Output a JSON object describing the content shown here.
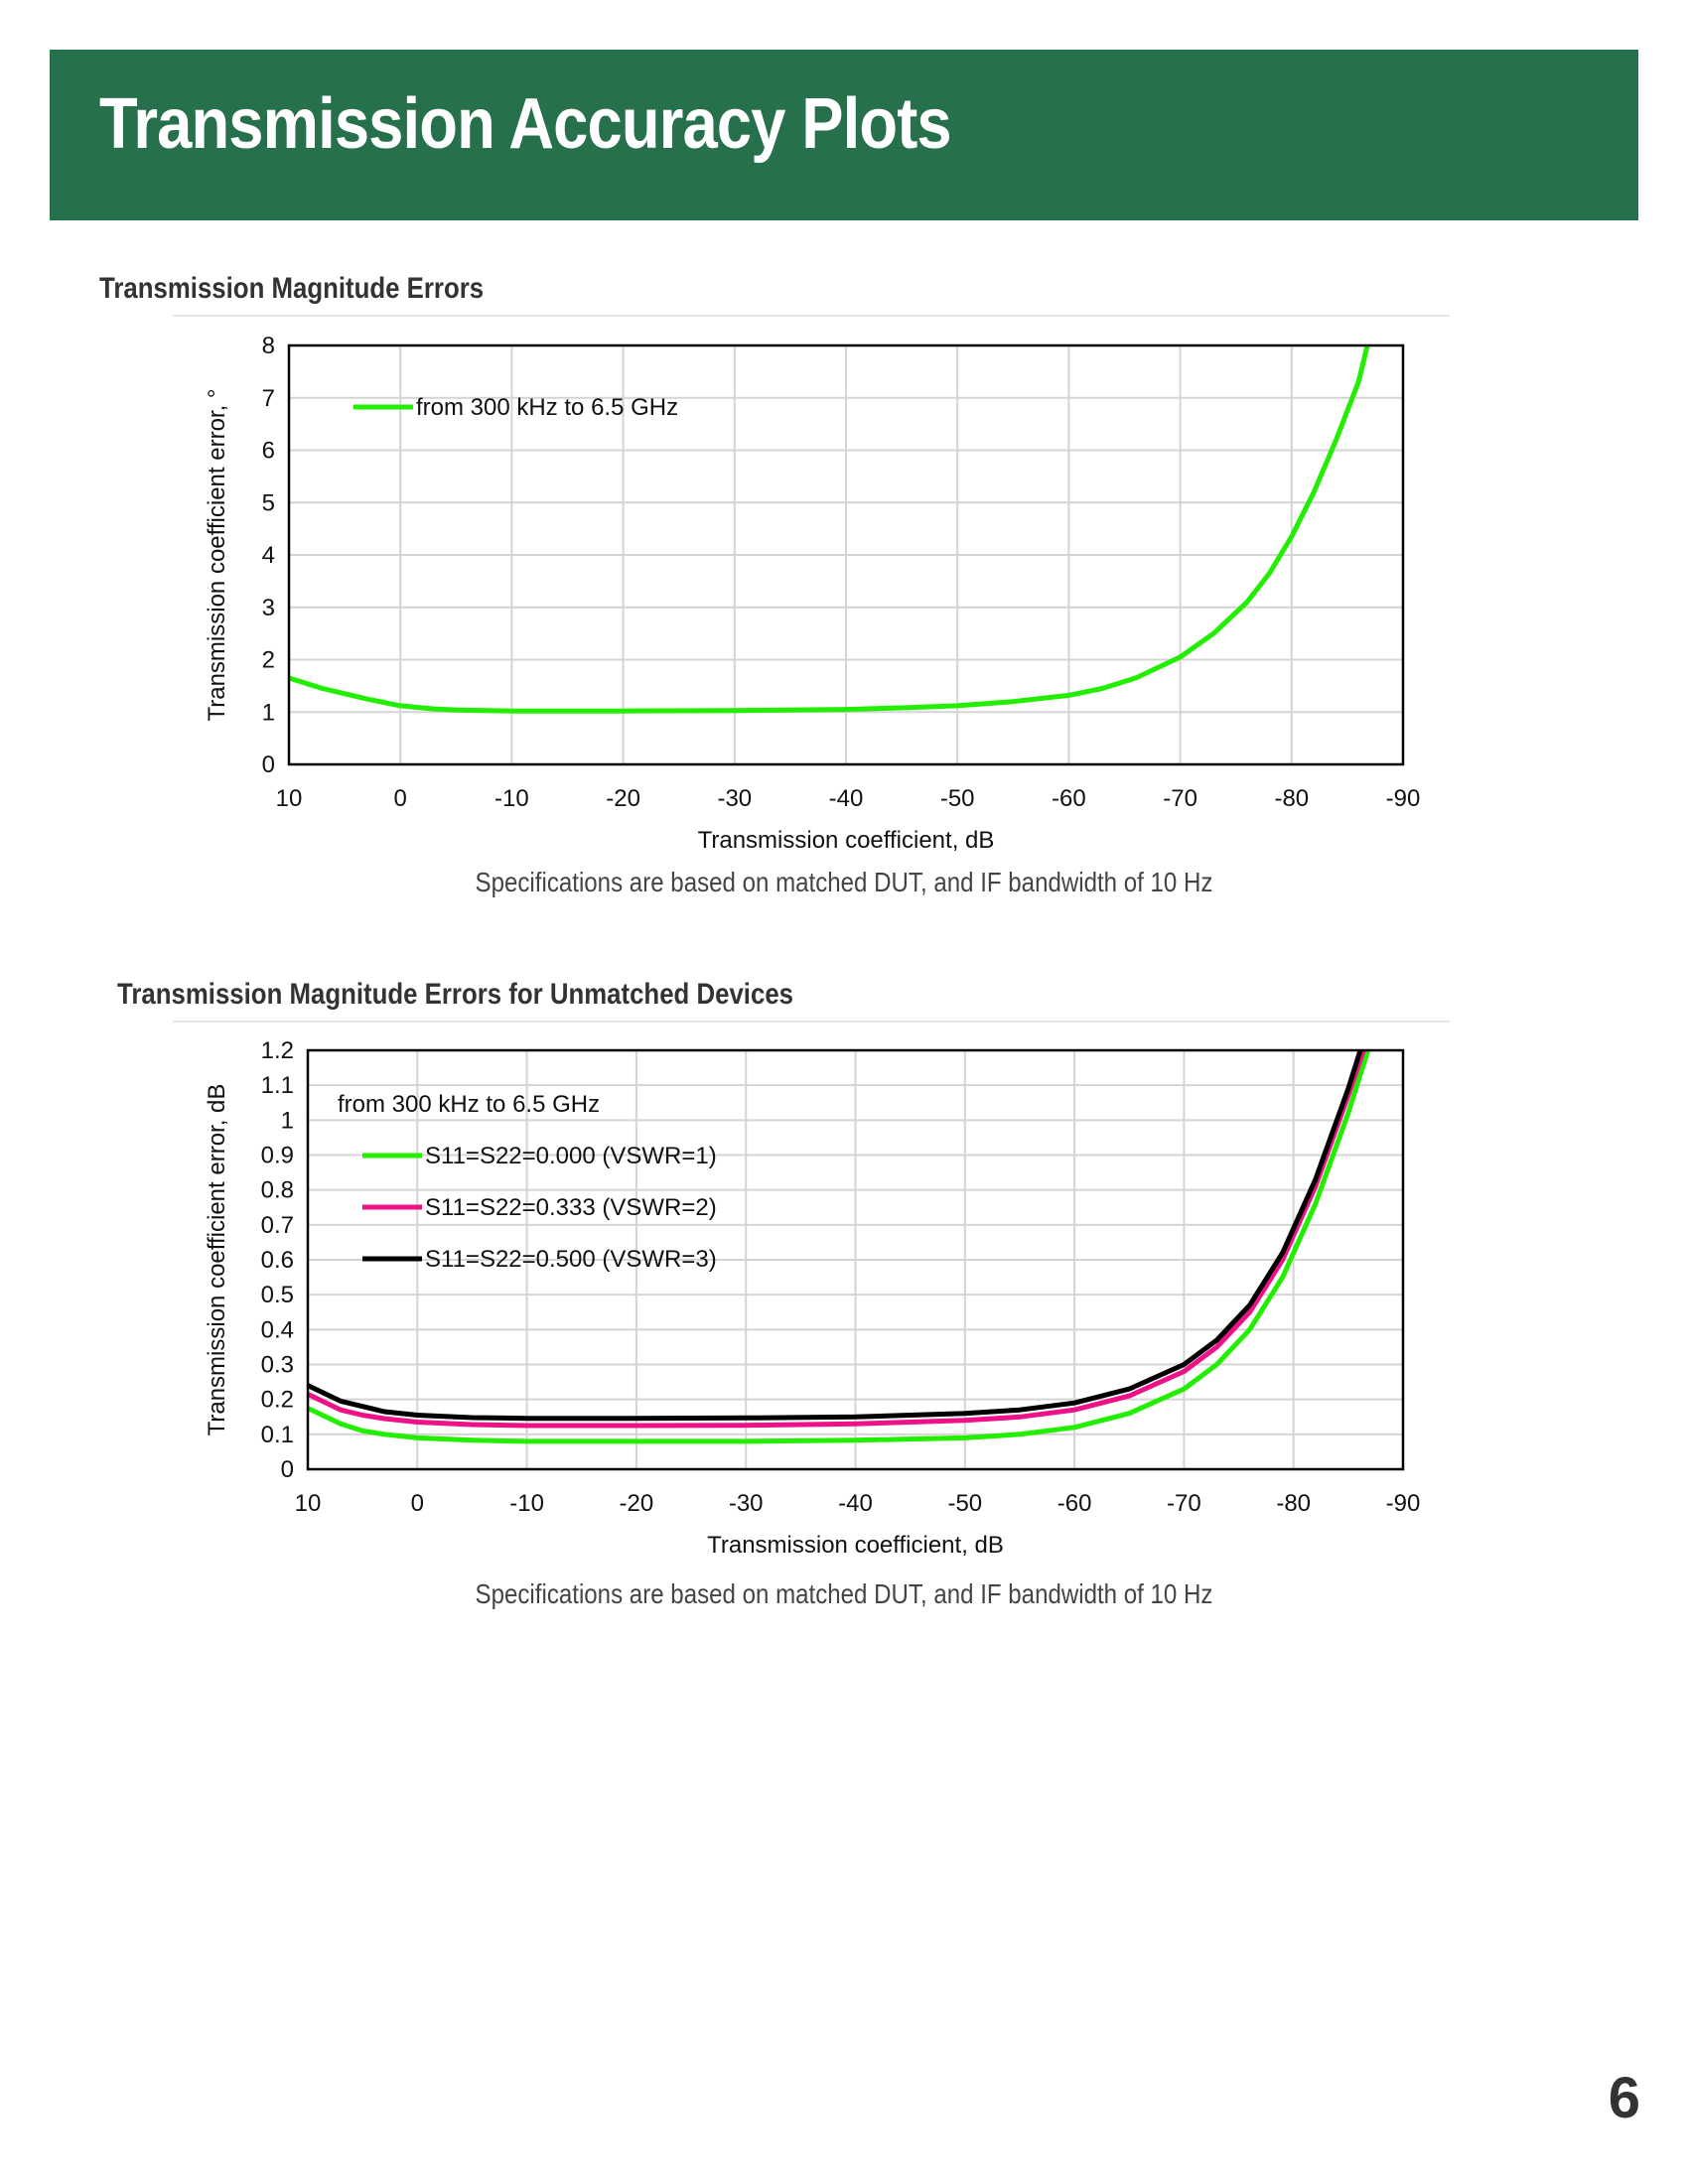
{
  "header": {
    "title": "Transmission Accuracy Plots",
    "background_color": "#26704c"
  },
  "sections": [
    {
      "title": "Transmission Magnitude Errors",
      "caption": "Specifications are based on matched DUT, and IF bandwidth of 10 Hz"
    },
    {
      "title": "Transmission Magnitude Errors for Unmatched Devices",
      "caption": "Specifications are based on matched DUT, and IF bandwidth of 10 Hz"
    }
  ],
  "page_number": "6",
  "chart_data": [
    {
      "type": "line",
      "title": "",
      "xlabel": "Transmission coefficient, dB",
      "ylabel": "Transmission coefficient error, °",
      "x_reversed": true,
      "xlim": [
        10,
        -90
      ],
      "ylim": [
        0,
        8
      ],
      "xticks": [
        10,
        0,
        -10,
        -20,
        -30,
        -40,
        -50,
        -60,
        -70,
        -80,
        -90
      ],
      "yticks": [
        0,
        1,
        2,
        3,
        4,
        5,
        6,
        7,
        8
      ],
      "ytick_labels": [
        "0",
        "1",
        "2",
        "3",
        "4",
        "5",
        "6",
        "7",
        "8"
      ],
      "grid": true,
      "legend_header": "",
      "legend_placement": "top-left",
      "series": [
        {
          "name": "from 300 kHz to 6.5 GHz",
          "color": "#22ee00",
          "x": [
            10,
            7,
            5,
            3,
            0,
            -3,
            -5,
            -10,
            -20,
            -30,
            -40,
            -45,
            -50,
            -55,
            -60,
            -63,
            -66,
            -70,
            -73,
            -76,
            -78,
            -80,
            -82,
            -84,
            -86,
            -86.8
          ],
          "y": [
            1.65,
            1.45,
            1.35,
            1.25,
            1.12,
            1.06,
            1.04,
            1.02,
            1.02,
            1.03,
            1.05,
            1.08,
            1.12,
            1.2,
            1.32,
            1.45,
            1.65,
            2.05,
            2.5,
            3.1,
            3.65,
            4.35,
            5.2,
            6.2,
            7.3,
            8.0
          ]
        }
      ]
    },
    {
      "type": "line",
      "title": "",
      "xlabel": "Transmission coefficient, dB",
      "ylabel": "Transmission coefficient error, dB",
      "x_reversed": true,
      "xlim": [
        10,
        -90
      ],
      "ylim": [
        0,
        1.2
      ],
      "xticks": [
        10,
        0,
        -10,
        -20,
        -30,
        -40,
        -50,
        -60,
        -70,
        -80,
        -90
      ],
      "yticks": [
        0,
        0.1,
        0.2,
        0.3,
        0.4,
        0.5,
        0.6,
        0.7,
        0.8,
        0.9,
        1.0,
        1.1,
        1.2
      ],
      "ytick_labels": [
        "0",
        "0.1",
        "0.2",
        "0.3",
        "0.4",
        "0.5",
        "0.6",
        "0.7",
        "0.8",
        "0.9",
        "1",
        "1.1",
        "1.2"
      ],
      "grid": true,
      "legend_header": "from 300 kHz to 6.5 GHz",
      "legend_placement": "top-left",
      "series": [
        {
          "name": "S11=S22=0.000 (VSWR=1)",
          "color": "#22ee00",
          "x": [
            10,
            7,
            5,
            3,
            0,
            -5,
            -10,
            -20,
            -30,
            -40,
            -50,
            -55,
            -60,
            -65,
            -70,
            -73,
            -76,
            -79,
            -82,
            -85,
            -86.8
          ],
          "y": [
            0.175,
            0.13,
            0.11,
            0.1,
            0.09,
            0.083,
            0.08,
            0.08,
            0.08,
            0.083,
            0.09,
            0.1,
            0.12,
            0.16,
            0.23,
            0.3,
            0.4,
            0.55,
            0.76,
            1.02,
            1.2
          ]
        },
        {
          "name": "S11=S22=0.333 (VSWR=2)",
          "color": "#ee1188",
          "x": [
            10,
            7,
            5,
            3,
            0,
            -5,
            -10,
            -20,
            -30,
            -40,
            -50,
            -55,
            -60,
            -65,
            -70,
            -73,
            -76,
            -79,
            -82,
            -85,
            -86.4
          ],
          "y": [
            0.215,
            0.17,
            0.155,
            0.145,
            0.135,
            0.128,
            0.125,
            0.125,
            0.126,
            0.13,
            0.14,
            0.15,
            0.17,
            0.21,
            0.28,
            0.35,
            0.45,
            0.6,
            0.81,
            1.07,
            1.2
          ]
        },
        {
          "name": "S11=S22=0.500 (VSWR=3)",
          "color": "#000000",
          "x": [
            10,
            7,
            5,
            3,
            0,
            -5,
            -10,
            -20,
            -30,
            -40,
            -50,
            -55,
            -60,
            -65,
            -70,
            -73,
            -76,
            -79,
            -82,
            -85,
            -86.1
          ],
          "y": [
            0.24,
            0.195,
            0.18,
            0.165,
            0.155,
            0.148,
            0.146,
            0.146,
            0.147,
            0.15,
            0.16,
            0.17,
            0.19,
            0.23,
            0.3,
            0.37,
            0.47,
            0.62,
            0.83,
            1.09,
            1.2
          ]
        }
      ]
    }
  ]
}
